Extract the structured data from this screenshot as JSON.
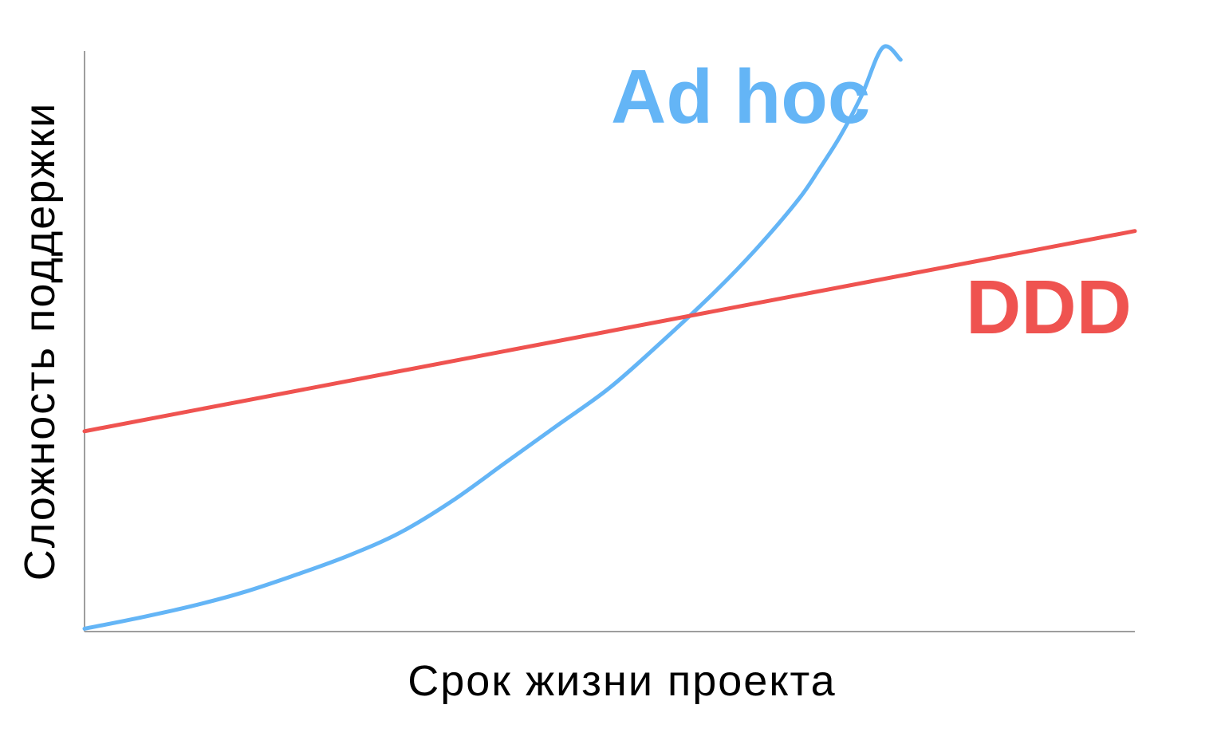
{
  "chart_data": {
    "type": "line",
    "title": "",
    "xlabel": "Срок жизни проекта",
    "ylabel": "Сложность поддержки",
    "xlim": [
      0,
      100
    ],
    "ylim": [
      0,
      100
    ],
    "grid": false,
    "legend": "inline-labels",
    "series": [
      {
        "name": "Ad hoc",
        "color": "#64b5f6",
        "x": [
          0,
          5,
          10,
          15,
          20,
          25,
          30,
          35,
          40,
          45,
          50,
          55,
          60,
          64,
          68,
          70,
          72,
          74,
          76,
          77.7
        ],
        "y": [
          0.5,
          2.3,
          4.3,
          6.7,
          9.7,
          13.0,
          17.0,
          22.5,
          29.0,
          35.5,
          42.0,
          50.0,
          58.5,
          66.0,
          74.5,
          79.8,
          85.5,
          92.4,
          100.6,
          98.5
        ]
      },
      {
        "name": "DDD",
        "color": "#ef5350",
        "x": [
          0,
          100
        ],
        "y": [
          34.5,
          69.0
        ]
      }
    ]
  }
}
